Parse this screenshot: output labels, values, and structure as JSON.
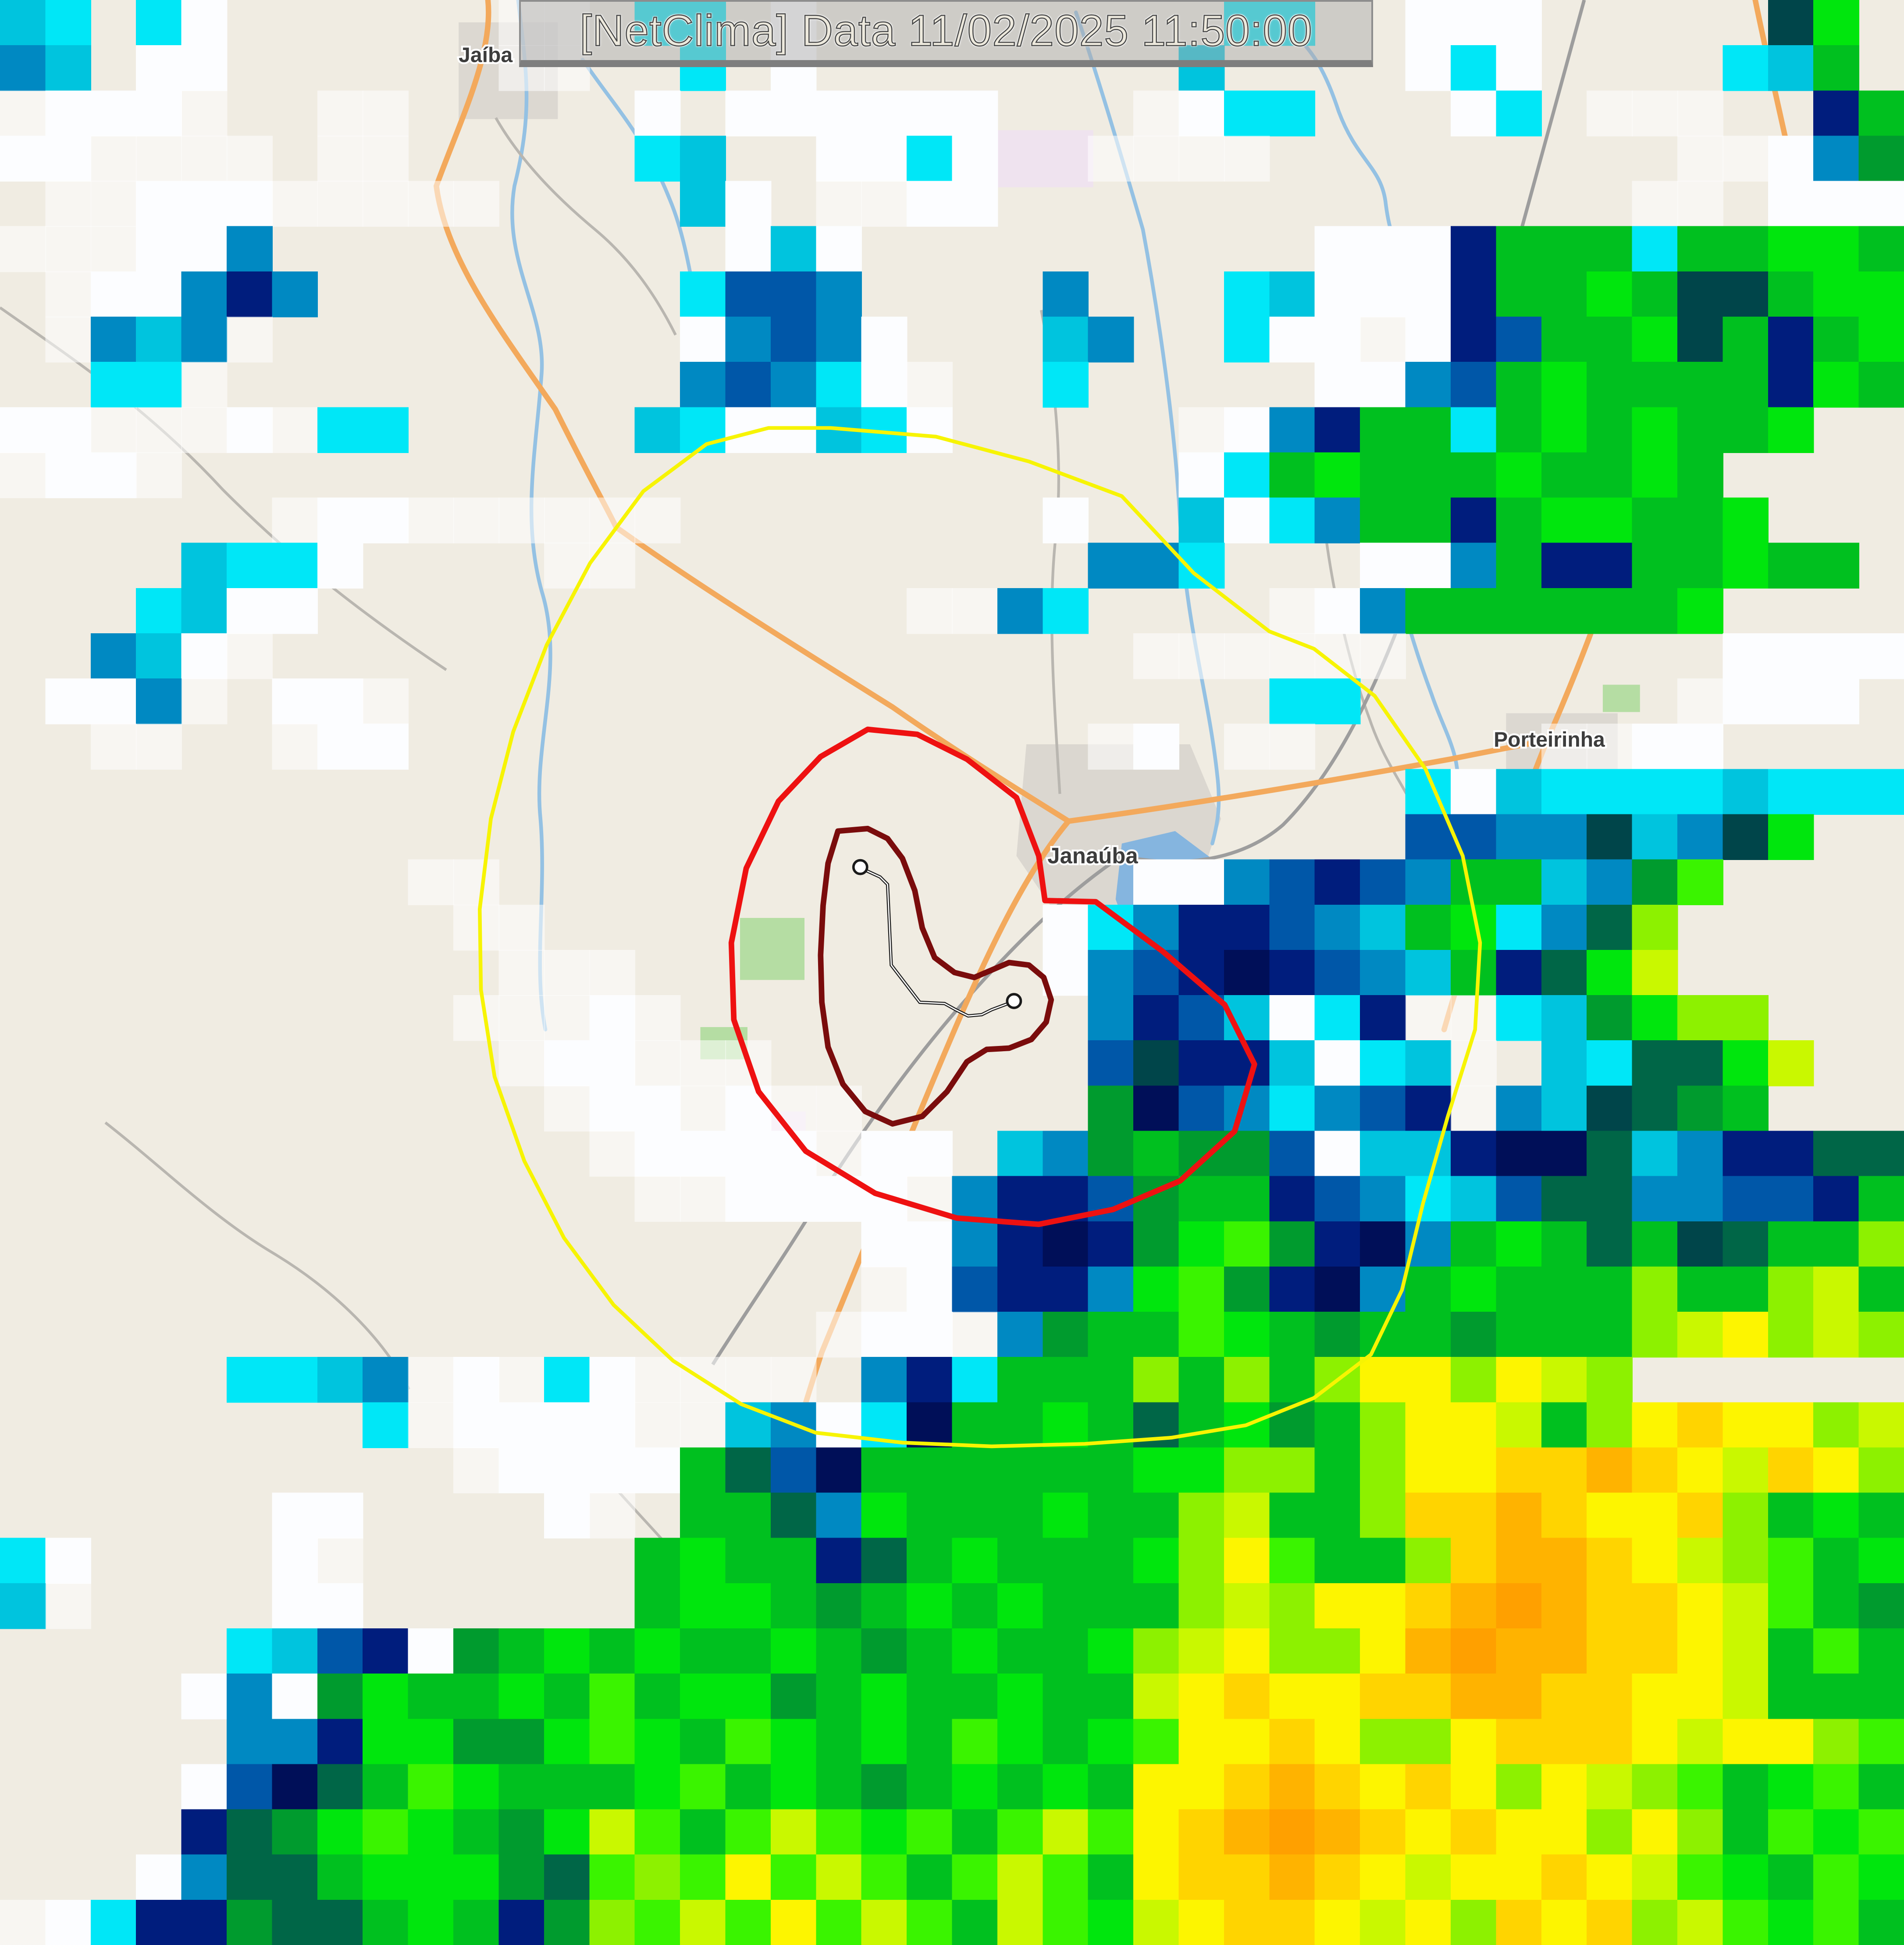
{
  "title_bar": {
    "text": "[NetClima] Data 11/02/2025 11:50:00"
  },
  "map": {
    "background_color": "#f0ece2",
    "city_labels": [
      {
        "label": "Jaíba"
      },
      {
        "label": "Janaúba"
      },
      {
        "label": "Porteirinha"
      }
    ]
  },
  "rings": {
    "outer_alert_ring": {
      "color": "#f7f402"
    },
    "middle_alert_ring": {
      "color": "#ee1111"
    },
    "inner_alert_ring": {
      "color": "#7a0c0c"
    }
  },
  "radar_overlay": {
    "cols": 42,
    "rows": 43,
    "palette": {
      "q": "rgba(255,255,255,0.55)",
      "w": "#fcfdff",
      "c": "#00e7f7",
      "C": "#00c4de",
      "b": "#0089c2",
      "B": "#0057a8",
      "n": "#001d7d",
      "N": "#000f58",
      "t": "#00454a",
      "d": "#006647",
      "G": "#009b2e",
      "g": "#00c01f",
      "e": "#00e60d",
      "E": "#3af400",
      "v": "#8df100",
      "V": "#c9f800",
      "y": "#fdf500",
      "Y": "#ffd400",
      "o": "#ffb300",
      "O": "#ffa000"
    },
    "grid": [
      "Cc.cw......qq.cc.w.........cc..www.....te",
      "bC.ww......qq..c.w........C....wcw....cCg",
      "qwwwq..qq.....w.wwwwww...qwcc...wc.qqq..nge",
      "wwqqqq.qq.....cC..wwcw..qqqq.........qqwbGE",
      ".qqwwwqqqqq....Cw.qqww..............qq.wwwnn",
      "qqqwwb..........wCw..........wwwngggcggeeg",
      ".qwwbnb........cBBb....b...cCwwwnggegttgee",
      ".qbCbq.........wbBbw...Cb..cwwqwnBggetgnge",
      "..ccq..........bBbcwq..c.....wwbBgeggggneg",
      "wwqqqwqcc.....CcwwCcw.....qwbnggcgegegge",
      "qwwq......................wcgegggeggeg",
      "......qwwqqqqqq........w..Cwcbggngeegge",
      "....Cccw....qq..........bbc...wwbgnnggegg",
      "...cCww.............qqbc....qwbgggggge",
      "..bCwq...................qqqqqq.......wwww",
      ".wwbq.wwq...................cc.......qwww",
      "..qq..qww...............qw.qq.....qqww",
      "...............................cwCccccCcccc",
      "...............................BBbbtCbte",
      ".........qq..............wwbBnBbggCbGE",
      "..........qq...........wcbnnBbCgecbdv",
      "...........qqq.........wbBnNnBbCgndeV",
      "..........qqqwq.........bnBCwcnqqcCGevv",
      "...........qwwqqq.......BtnnCwcCq.CcddeV",
      "............qwwqwqq.....GNBbcbBnqbCtdGg",
      ".............qwwwwqww.CbGgGGBwCCnNNdCbnndd",
      "..............qqwwwwqbnnBGggnBbcCBddbbBBng",
      "...................wwbnNnGeEGnNbgegdgtdggv",
      "...................qwBnnbeEGnNbgegggvggvVg",
      "..................qwwqbGggEegGggGgggvVyvVv",
      ".....ccCbqwqcwqqqq.bncgggvgvgvyyvyVv",
      "........cqwwwwqqCbwcNggegdgeGgvyyVgvyYyyvV",
      "..........qwwwwgdBNggggggeevvgvyyYYoYyVYyvy",
      "......ww....wq.ggdbegggeggvVggvYYoYyyYvgeg",
      "cw....wq......geggndgegggevyEggvYooYyVvEge",
      "Cq....ww......geegGgegegggvVvyyYoOoYYyVEgG",
      ".....cCBnwGgegeggegGgeggevVyvvyoOooYYyVgEg",
      "....wbwGeggegEgeeGgeggeggVyYyyYYooYYyyVggg",
      ".....bbneeGGeEegEegegEegeEyyYyvvyYYYyVyyvE",
      "....wBNdgEegggeEgegGgegegyyYoYyYyvyVvEgeEg",
      "....ndGeEegGeVEgEVEeEgEVEyYoOoYyYyyvyvgEeE",
      "...wbddgeeeGdEvEyEVEgEVEgyYYoYyVyyYyVEegEe",
      "qwcnnGddgegnGvEVEyEVEgVEeVyYYyVyvYyYvVEeEg"
    ]
  }
}
